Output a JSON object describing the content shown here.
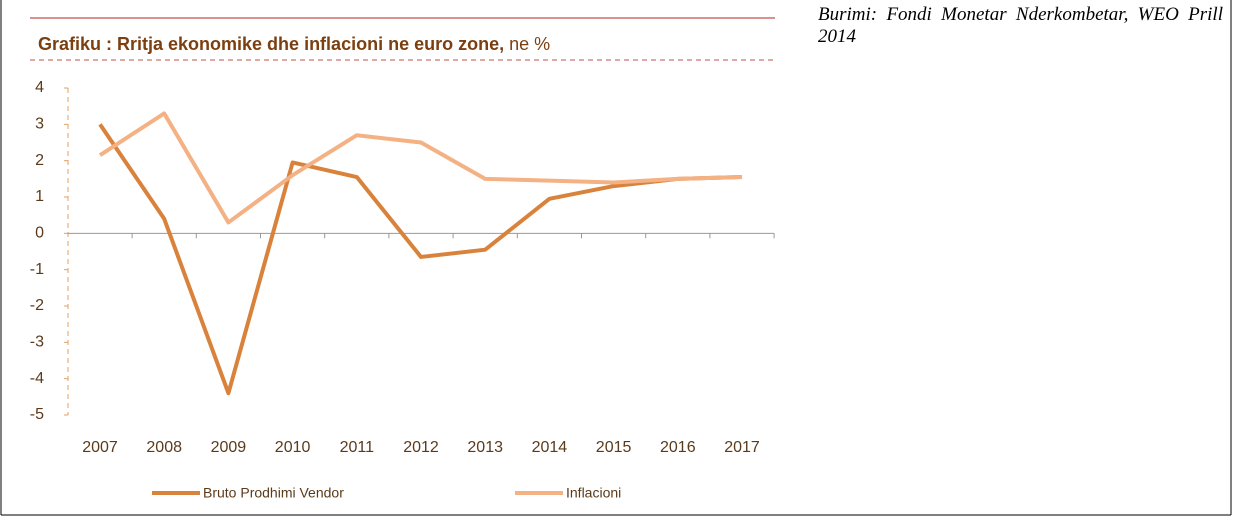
{
  "chart_data": {
    "type": "line",
    "title": "Grafiku : Rritja ekonomike dhe inflacioni ne euro zone,",
    "unit": "ne %",
    "source": "Burimi: Fondi Monetar Nderkombetar, WEO Prill 2014",
    "categories": [
      "2007",
      "2008",
      "2009",
      "2010",
      "2011",
      "2012",
      "2013",
      "2014",
      "2015",
      "2016",
      "2017"
    ],
    "series": [
      {
        "name": "Bruto Prodhimi Vendor",
        "color": "#d9823b",
        "values": [
          3.0,
          0.4,
          -4.4,
          1.95,
          1.55,
          -0.65,
          -0.45,
          0.95,
          1.3,
          1.5,
          1.55
        ]
      },
      {
        "name": "Inflacioni",
        "color": "#f4b183",
        "values": [
          2.15,
          3.3,
          0.3,
          1.6,
          2.7,
          2.5,
          1.5,
          1.45,
          1.4,
          1.5,
          1.55
        ]
      }
    ],
    "ylim": [
      -5,
      4
    ],
    "yticks": [
      -5,
      -4,
      -3,
      -2,
      -1,
      0,
      1,
      2,
      3,
      4
    ]
  }
}
